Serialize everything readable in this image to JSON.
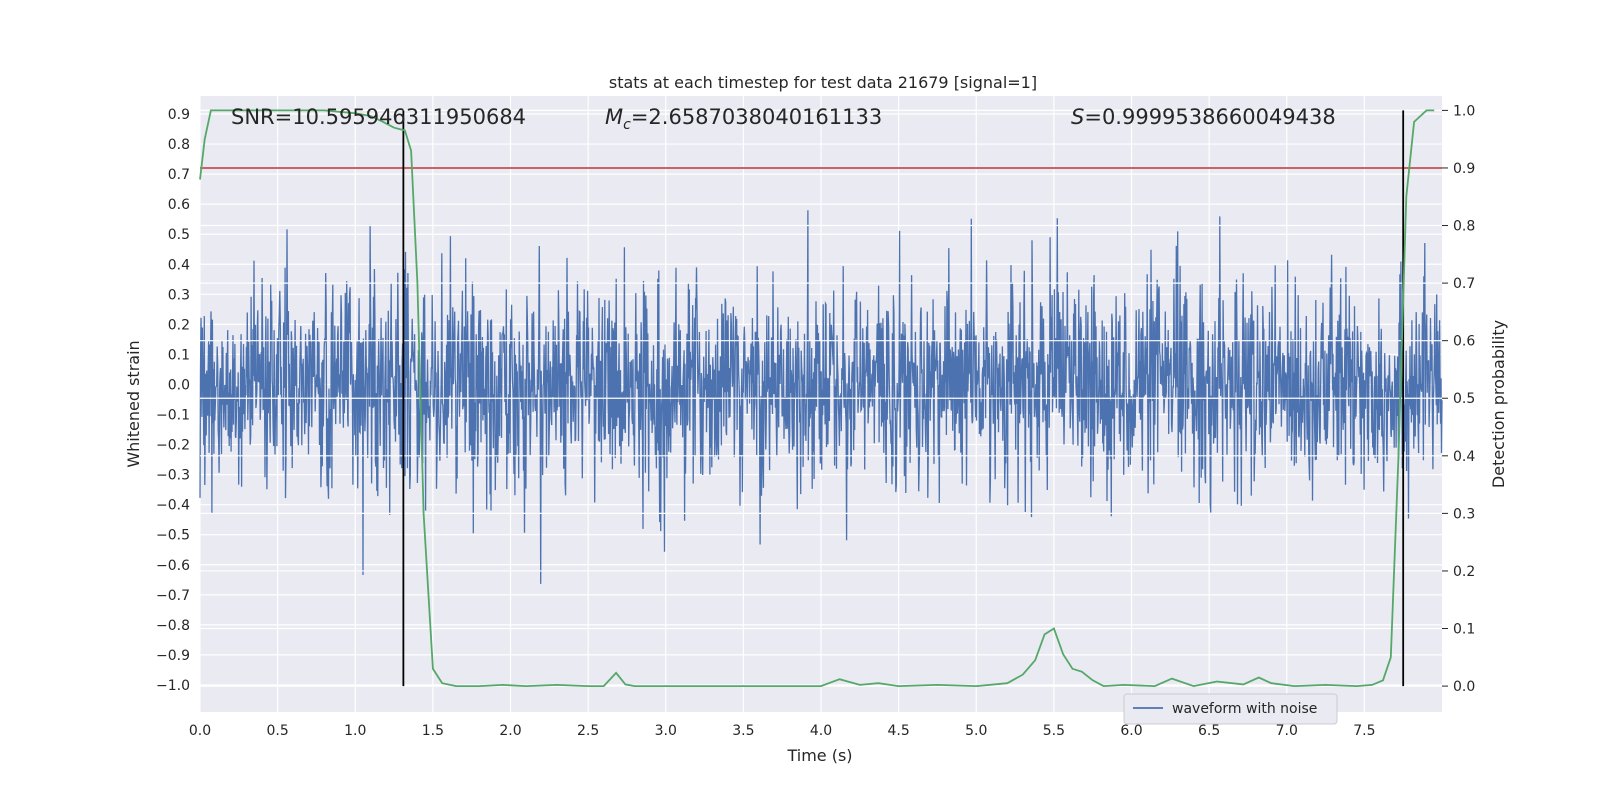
{
  "chart_data": {
    "type": "line",
    "title": "stats at each timestep for test data 21679 [signal=1]",
    "xlabel": "Time (s)",
    "ylabel_left": "Whitened strain",
    "ylabel_right": "Detection probability",
    "xlim": [
      0.0,
      8.0
    ],
    "ylim_left": [
      -1.09,
      0.96
    ],
    "ylim_right": [
      -0.045,
      1.025
    ],
    "x_ticks": [
      "0.0",
      "0.5",
      "1.0",
      "1.5",
      "2.0",
      "2.5",
      "3.0",
      "3.5",
      "4.0",
      "4.5",
      "5.0",
      "5.5",
      "6.0",
      "6.5",
      "7.0",
      "7.5"
    ],
    "y_left_ticks": [
      "0.9",
      "0.8",
      "0.7",
      "0.6",
      "0.5",
      "0.4",
      "0.3",
      "0.2",
      "0.1",
      "0.0",
      "-0.1",
      "-0.2",
      "-0.3",
      "-0.4",
      "-0.5",
      "-0.6",
      "-0.7",
      "-0.8",
      "-0.9",
      "-1.0"
    ],
    "y_right_ticks": [
      "1.0",
      "0.9",
      "0.8",
      "0.7",
      "0.6",
      "0.5",
      "0.4",
      "0.3",
      "0.2",
      "0.1",
      "0.0"
    ],
    "annotations": {
      "snr": "SNR=10.595946311950684",
      "mc_symbol": "M",
      "mc_sub": "c",
      "mc_value": "=2.6587038040161133",
      "s_symbol": "S",
      "s_value": "=0.9999538660049438"
    },
    "legend": {
      "label": "waveform with noise",
      "placement": "lower-right"
    },
    "threshold": {
      "value": 0.9,
      "axis": "right",
      "color": "#c44e52"
    },
    "vlines": [
      1.31,
      7.75
    ],
    "waveform": {
      "name": "waveform with noise",
      "color": "#4c72b0",
      "x_range": [
        0.0,
        8.0
      ],
      "typical_amplitude": 0.3,
      "peak_range": [
        -0.99,
        0.85
      ]
    },
    "series": [
      {
        "name": "detection probability",
        "axis": "right",
        "color": "#55a868",
        "x": [
          0.0,
          0.03,
          0.07,
          0.2,
          0.4,
          0.6,
          0.8,
          1.0,
          1.1,
          1.18,
          1.25,
          1.32,
          1.36,
          1.4,
          1.44,
          1.5,
          1.56,
          1.65,
          1.8,
          1.95,
          2.1,
          2.3,
          2.5,
          2.6,
          2.68,
          2.74,
          2.8,
          3.0,
          3.5,
          4.0,
          4.12,
          4.25,
          4.37,
          4.5,
          4.75,
          5.0,
          5.2,
          5.3,
          5.38,
          5.44,
          5.5,
          5.56,
          5.62,
          5.68,
          5.75,
          5.82,
          5.95,
          6.15,
          6.26,
          6.4,
          6.55,
          6.72,
          6.82,
          6.9,
          7.05,
          7.25,
          7.45,
          7.55,
          7.62,
          7.67,
          7.72,
          7.77,
          7.82,
          7.86,
          7.9,
          7.95
        ],
        "values": [
          0.88,
          0.95,
          1.0,
          1.0,
          1.0,
          1.0,
          1.0,
          0.995,
          0.99,
          0.98,
          0.97,
          0.965,
          0.93,
          0.7,
          0.3,
          0.03,
          0.005,
          0.0,
          0.0,
          0.002,
          0.0,
          0.002,
          0.0,
          0.0,
          0.023,
          0.003,
          0.0,
          0.0,
          0.0,
          0.0,
          0.012,
          0.002,
          0.005,
          0.0,
          0.002,
          0.0,
          0.005,
          0.02,
          0.045,
          0.09,
          0.1,
          0.055,
          0.03,
          0.025,
          0.01,
          0.0,
          0.002,
          0.0,
          0.013,
          0.0,
          0.008,
          0.003,
          0.015,
          0.005,
          0.0,
          0.002,
          0.0,
          0.002,
          0.01,
          0.05,
          0.4,
          0.85,
          0.98,
          0.99,
          1.0,
          1.0
        ]
      }
    ]
  }
}
